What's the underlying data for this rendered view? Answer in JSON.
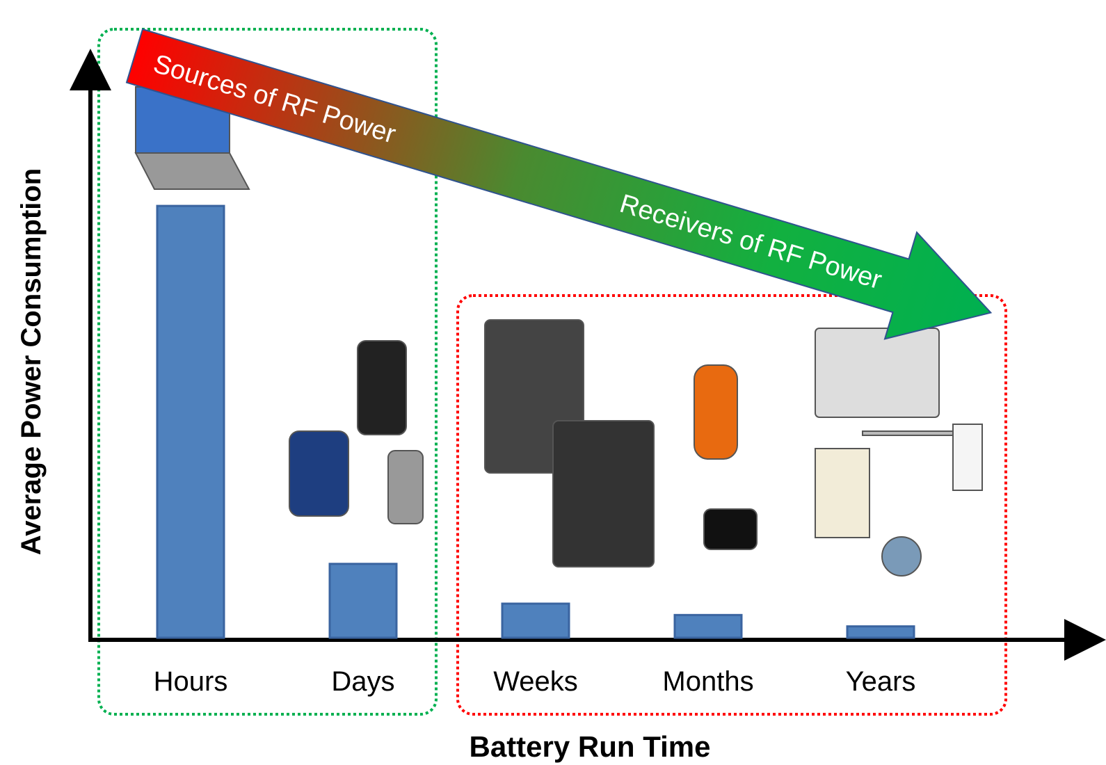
{
  "chart_data": {
    "type": "bar",
    "x_label": "Battery Run Time",
    "y_label": "Average Power Consumption",
    "annotations": [
      "Sources of RF Power",
      "Receivers of RF Power"
    ],
    "categories": [
      "Hours",
      "Days",
      "Weeks",
      "Months",
      "Years"
    ],
    "values": [
      76,
      13,
      6,
      4,
      2
    ],
    "color": "#4f81bd",
    "ylim": [
      0,
      100
    ]
  }
}
